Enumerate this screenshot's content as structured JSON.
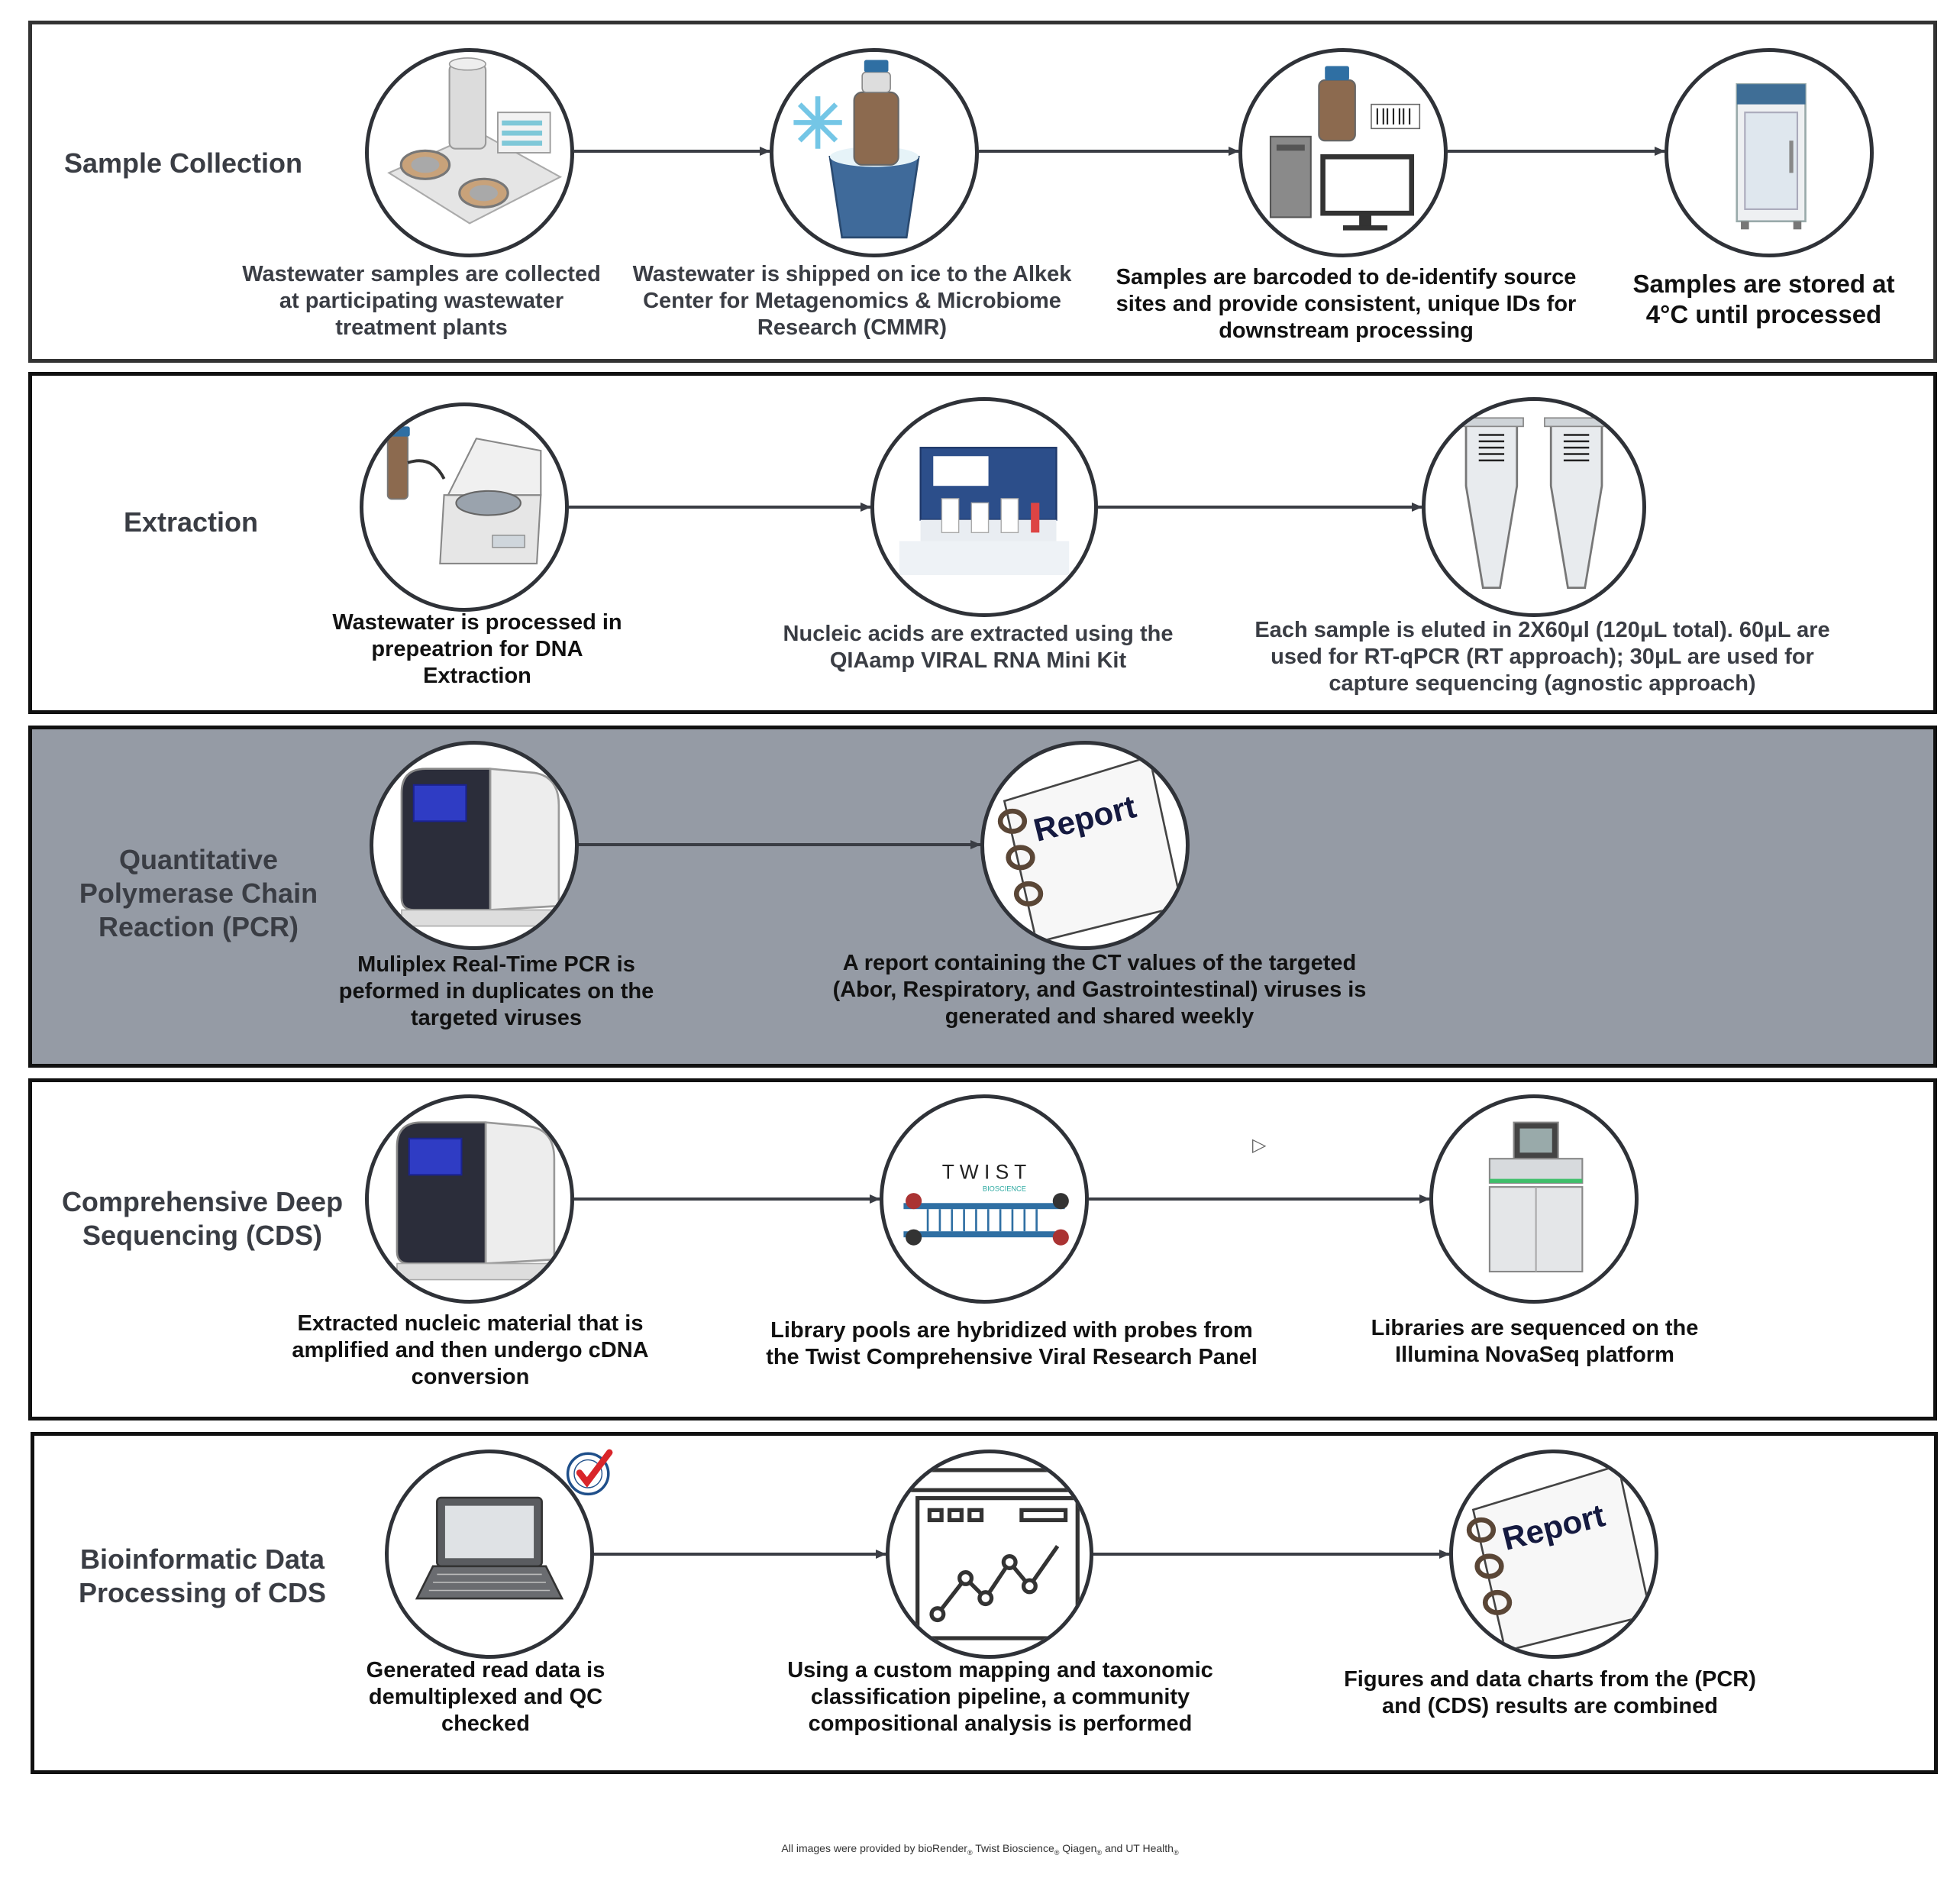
{
  "sections": [
    {
      "title": "Sample Collection",
      "steps": [
        {
          "icon": "wastewater-plant-icon",
          "caption": "Wastewater samples are collected at participating wastewater treatment plants"
        },
        {
          "icon": "sample-on-ice-icon",
          "caption": "Wastewater is shipped on ice to the Alkek Center for Metagenomics & Microbiome Research (CMMR)"
        },
        {
          "icon": "barcode-computer-icon",
          "caption": "Samples are barcoded to de-identify source sites and provide consistent, unique IDs for downstream processing"
        },
        {
          "icon": "refrigerator-icon",
          "caption": "Samples are stored at 4°C until processed"
        }
      ]
    },
    {
      "title": "Extraction",
      "steps": [
        {
          "icon": "centrifuge-icon",
          "caption": "Wastewater is processed in prepeatrion for DNA Extraction"
        },
        {
          "icon": "extraction-kit-icon",
          "caption": "Nucleic acids are extracted using the QIAamp VIRAL RNA Mini Kit"
        },
        {
          "icon": "eluted-tubes-icon",
          "caption": "Each sample is eluted in 2X60μl (120μL total). 60μL are used for RT-qPCR (RT approach); 30μL are used for capture sequencing (agnostic approach)"
        }
      ]
    },
    {
      "title": "Quantitative Polymerase Chain Reaction (PCR)",
      "steps": [
        {
          "icon": "pcr-machine-icon",
          "caption": "Muliplex Real-Time PCR is peformed in duplicates on the targeted viruses"
        },
        {
          "icon": "report-icon",
          "caption": "A report containing the CT values of the targeted (Abor, Respiratory, and Gastrointestinal) viruses is generated and shared weekly",
          "label": "Report"
        }
      ]
    },
    {
      "title": "Comprehensive Deep Sequencing (CDS)",
      "steps": [
        {
          "icon": "pcr-machine-icon",
          "caption": "Extracted nucleic material that is amplified and then undergo cDNA conversion"
        },
        {
          "icon": "twist-probe-icon",
          "caption": "Library pools are hybridized with probes from the Twist Comprehensive Viral Research Panel",
          "label": "T W I S T",
          "sublabel": "BIOSCIENCE"
        },
        {
          "icon": "sequencer-icon",
          "caption": "Libraries are sequenced on the Illumina NovaSeq platform"
        }
      ]
    },
    {
      "title": "Bioinformatic Data Processing of CDS",
      "steps": [
        {
          "icon": "laptop-icon",
          "caption": "Generated read data is demultiplexed and QC checked",
          "badge": "QUALITY CHECK"
        },
        {
          "icon": "analysis-dashboard-icon",
          "caption": "Using a custom mapping and taxonomic classification pipeline, a community compositional analysis is performed"
        },
        {
          "icon": "report-icon",
          "caption": "Figures and data charts from the (PCR) and (CDS) results are combined",
          "label": "Report"
        }
      ]
    }
  ],
  "footer": {
    "text": "All images were provided by bioRender",
    "mark1": "®",
    "p2": " Twist Bioscience",
    "mark2": "®",
    "p3": " Qiagen",
    "mark3": "®",
    "p4": " and UT Health",
    "mark4": "®"
  },
  "colors": {
    "gray_panel": "#959ba5",
    "border": "#111111",
    "title_text": "#3a3d44",
    "arrow": "#3a3d44"
  }
}
